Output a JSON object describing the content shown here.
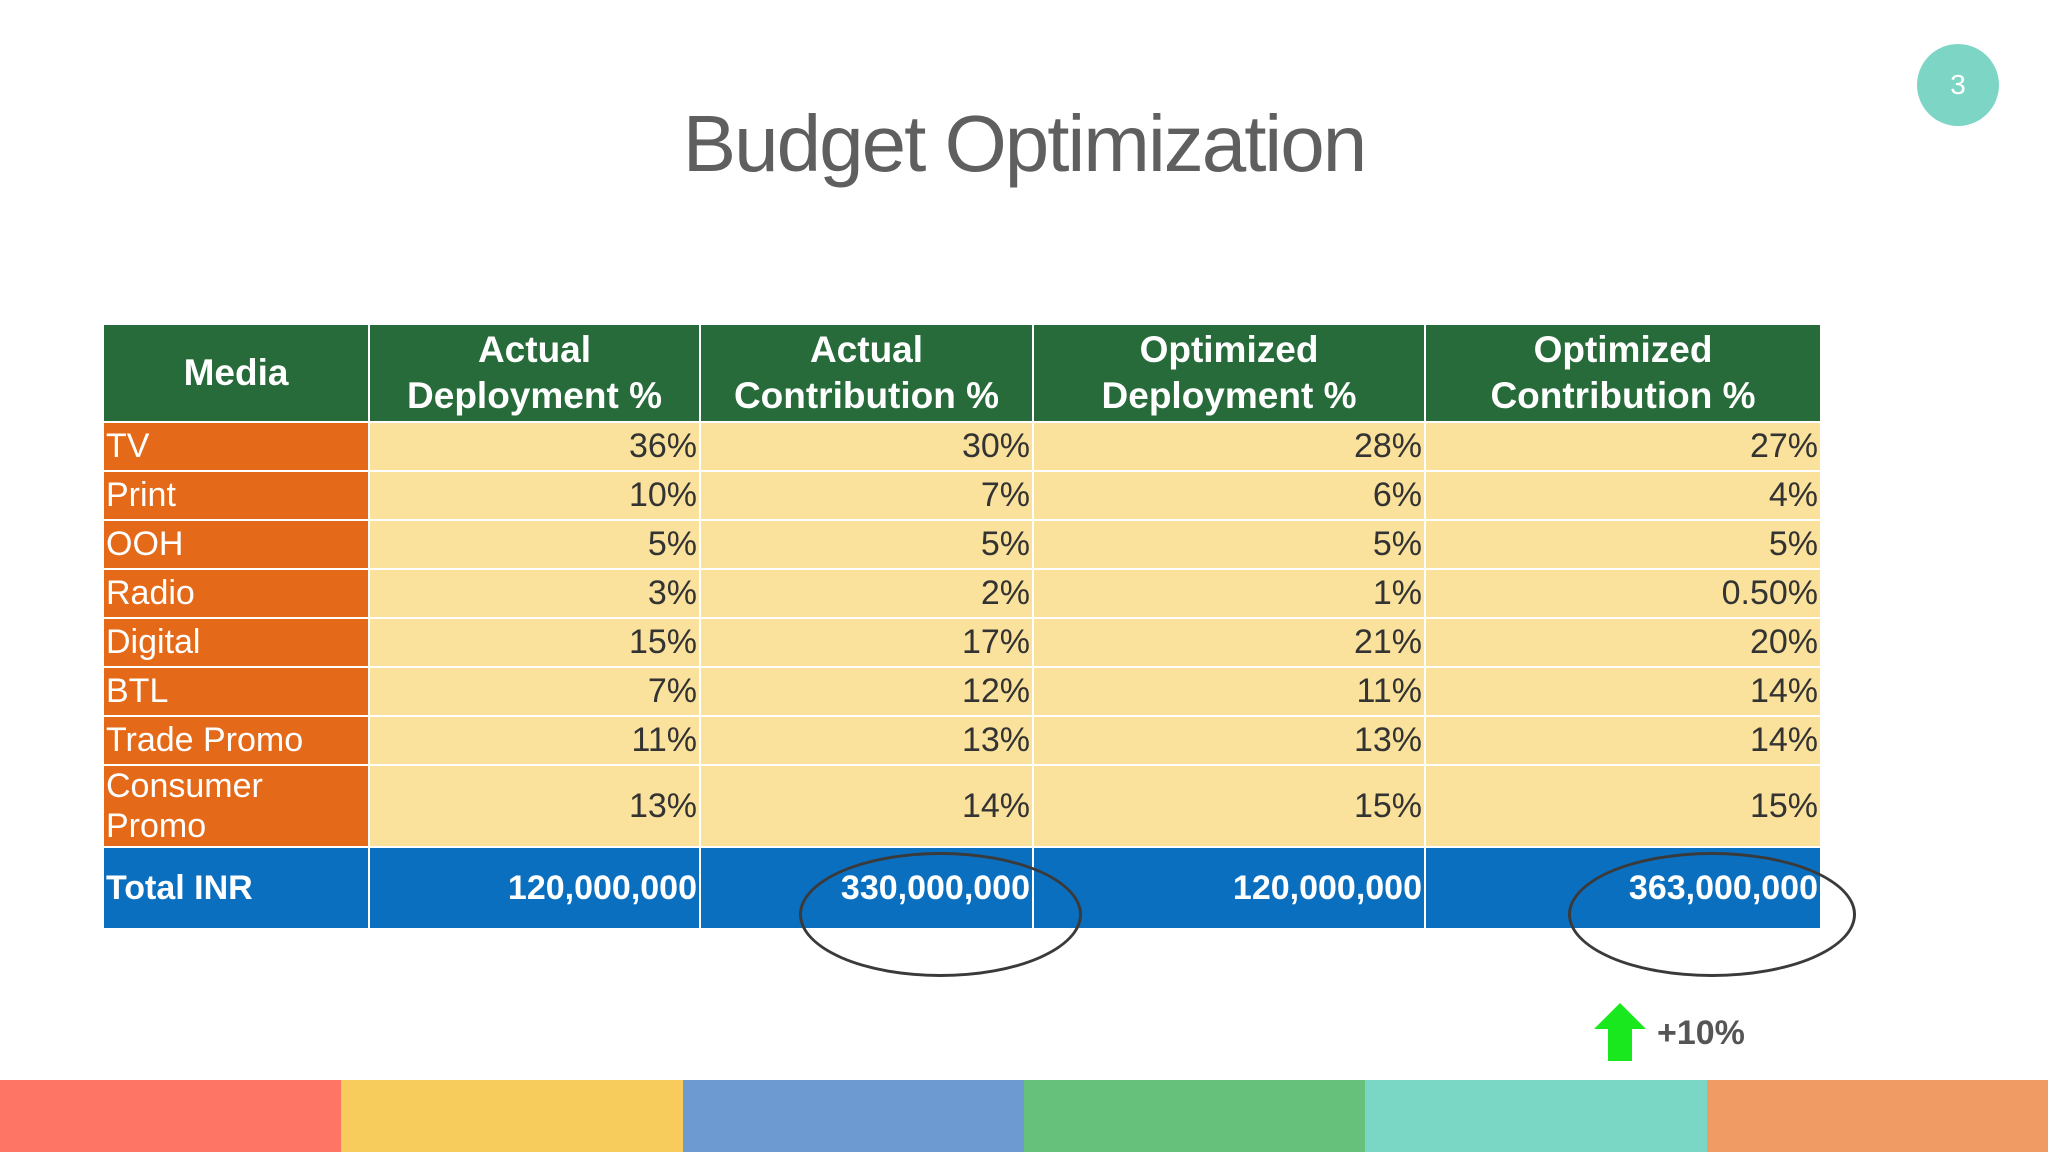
{
  "page_number": "3",
  "title": "Budget Optimization",
  "table": {
    "headers": {
      "media": "Media",
      "actual_deployment": [
        "Actual",
        "Deployment %"
      ],
      "actual_contribution": [
        "Actual",
        "Contribution %"
      ],
      "optimized_deployment": [
        "Optimized",
        "Deployment %"
      ],
      "optimized_contribution": [
        "Optimized",
        "Contribution %"
      ]
    },
    "rows": [
      {
        "media": "TV",
        "values": [
          "36%",
          "30%",
          "28%",
          "27%"
        ]
      },
      {
        "media": "Print",
        "values": [
          "10%",
          "7%",
          "6%",
          "4%"
        ]
      },
      {
        "media": "OOH",
        "values": [
          "5%",
          "5%",
          "5%",
          "5%"
        ]
      },
      {
        "media": "Radio",
        "values": [
          "3%",
          "2%",
          "1%",
          "0.50%"
        ]
      },
      {
        "media": "Digital",
        "values": [
          "15%",
          "17%",
          "21%",
          "20%"
        ]
      },
      {
        "media": "BTL",
        "values": [
          "7%",
          "12%",
          "11%",
          "14%"
        ]
      },
      {
        "media": "Trade Promo",
        "values": [
          "11%",
          "13%",
          "13%",
          "14%"
        ]
      },
      {
        "media": [
          "Consumer",
          "Promo"
        ],
        "values": [
          "13%",
          "14%",
          "15%",
          "15%"
        ]
      }
    ],
    "total": {
      "label": "Total INR",
      "values": [
        "120,000,000",
        "330,000,000",
        "120,000,000",
        "363,000,000"
      ]
    }
  },
  "change": {
    "label": "+10%",
    "icon": "up-arrow-icon",
    "color": "#19e81f"
  },
  "colors": {
    "header_green": "#276b3a",
    "media_orange": "#e46a1a",
    "value_cream": "#fae29c",
    "total_blue": "#0b6fc0",
    "badge_teal": "#7dd6c5"
  },
  "footer_stripes": [
    "#fe7565",
    "#f8cc5c",
    "#6d9bd1",
    "#66c27a",
    "#7ad7c6",
    "#ef9b63"
  ]
}
